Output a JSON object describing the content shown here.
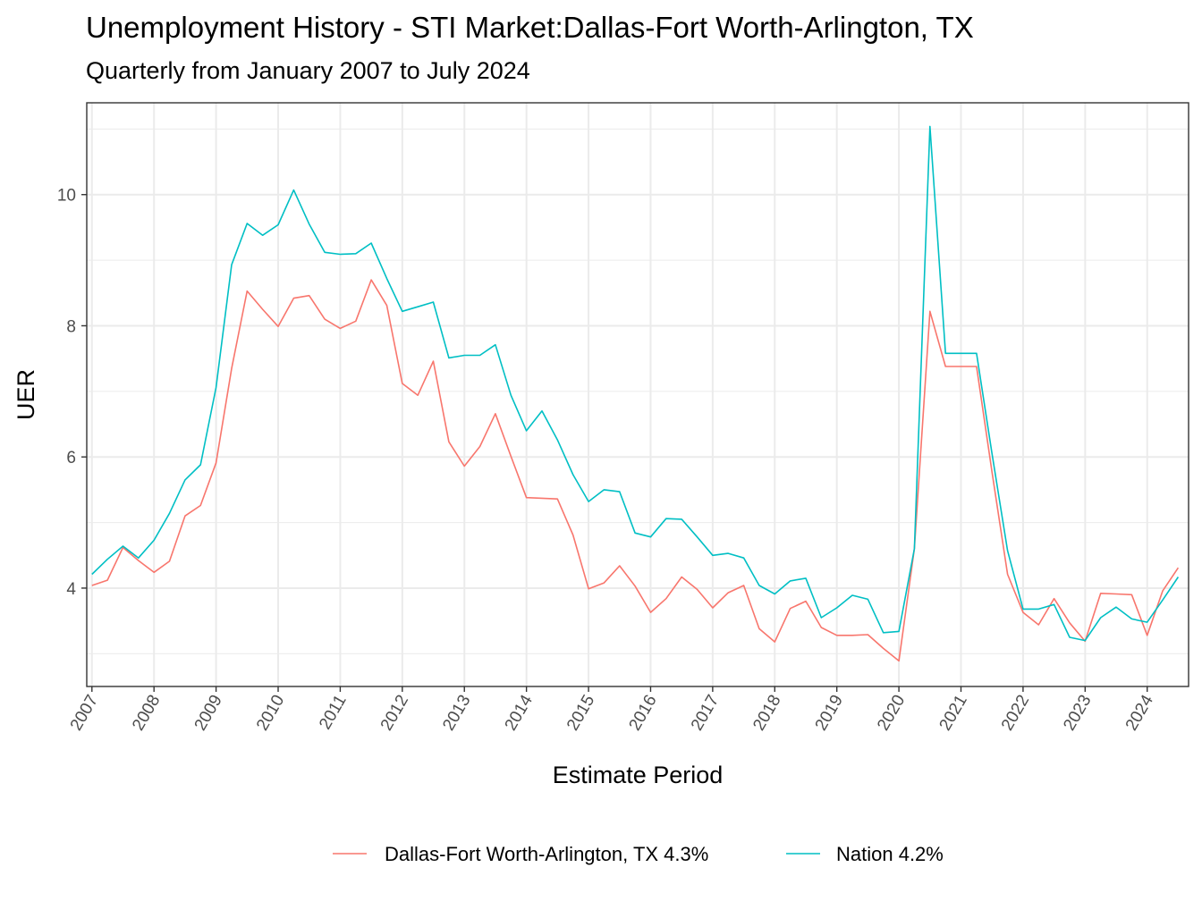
{
  "chart_data": {
    "type": "line",
    "title": "Unemployment History - STI Market:Dallas-Fort Worth-Arlington, TX",
    "subtitle": "Quarterly from January 2007 to July 2024",
    "xlabel": "Estimate Period",
    "ylabel": "UER",
    "x_start": "2007-01",
    "x_step_months": 3,
    "xlim": [
      "2006-12",
      "2024-09"
    ],
    "ylim": [
      2.5,
      11.4
    ],
    "x_ticks": [
      "2007",
      "2008",
      "2009",
      "2010",
      "2011",
      "2012",
      "2013",
      "2014",
      "2015",
      "2016",
      "2017",
      "2018",
      "2019",
      "2020",
      "2021",
      "2022",
      "2023",
      "2024"
    ],
    "y_ticks": [
      4,
      6,
      8,
      10
    ],
    "grid": true,
    "legend_position": "bottom",
    "series": [
      {
        "name": "Dallas-Fort Worth-Arlington, TX 4.3%",
        "color": "#F8766D",
        "values": [
          4.04,
          4.12,
          4.62,
          4.42,
          4.24,
          4.41,
          5.1,
          5.26,
          5.91,
          7.35,
          8.53,
          8.25,
          7.99,
          8.42,
          8.46,
          8.1,
          7.96,
          8.07,
          8.7,
          8.31,
          7.12,
          6.94,
          7.46,
          6.23,
          5.86,
          6.16,
          6.66,
          6.01,
          5.38,
          5.37,
          5.36,
          4.81,
          3.99,
          4.08,
          4.34,
          4.03,
          3.63,
          3.84,
          4.17,
          3.98,
          3.7,
          3.93,
          4.04,
          3.38,
          3.18,
          3.69,
          3.8,
          3.4,
          3.28,
          3.28,
          3.29,
          3.08,
          2.89,
          4.6,
          8.22,
          7.38,
          7.38,
          7.38,
          5.77,
          4.21,
          3.63,
          3.44,
          3.84,
          3.47,
          3.19,
          3.92,
          3.91,
          3.9,
          3.28,
          3.96,
          4.31
        ]
      },
      {
        "name": "Nation 4.2%",
        "color": "#00BFC4",
        "values": [
          4.21,
          4.44,
          4.64,
          4.46,
          4.73,
          5.14,
          5.65,
          5.88,
          7.06,
          8.93,
          9.56,
          9.38,
          9.54,
          10.07,
          9.55,
          9.12,
          9.09,
          9.1,
          9.26,
          8.72,
          8.22,
          8.29,
          8.36,
          7.51,
          7.55,
          7.55,
          7.71,
          6.94,
          6.4,
          6.7,
          6.26,
          5.73,
          5.32,
          5.5,
          5.47,
          4.84,
          4.78,
          5.06,
          5.05,
          4.78,
          4.5,
          4.53,
          4.46,
          4.04,
          3.91,
          4.11,
          4.15,
          3.55,
          3.7,
          3.89,
          3.83,
          3.32,
          3.34,
          4.6,
          11.04,
          7.58,
          7.58,
          7.58,
          6.05,
          4.57,
          3.68,
          3.68,
          3.75,
          3.25,
          3.2,
          3.55,
          3.71,
          3.53,
          3.48,
          3.82,
          4.17
        ]
      }
    ]
  }
}
